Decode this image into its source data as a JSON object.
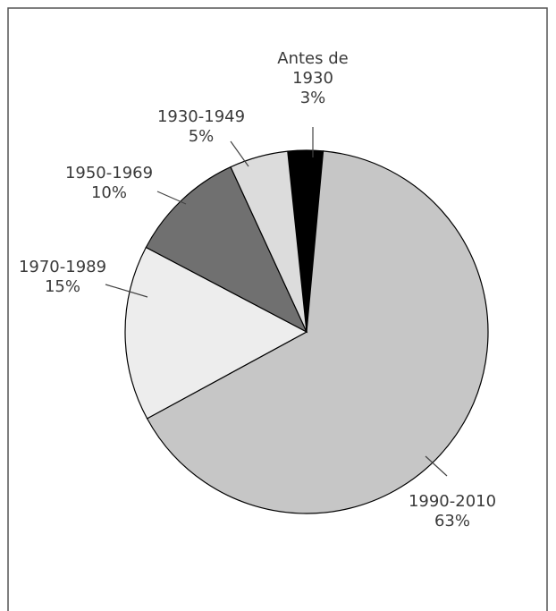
{
  "chart_data": {
    "type": "pie",
    "categories": [
      "Antes de 1930",
      "1990-2010",
      "1970-1989",
      "1950-1969",
      "1930-1949"
    ],
    "values": [
      3,
      63,
      15,
      10,
      5
    ],
    "value_labels": [
      "3%",
      "63%",
      "15%",
      "10%",
      "5%"
    ],
    "colors": [
      "#000000",
      "#c6c6c6",
      "#ededed",
      "#707070",
      "#dcdcdc"
    ]
  }
}
